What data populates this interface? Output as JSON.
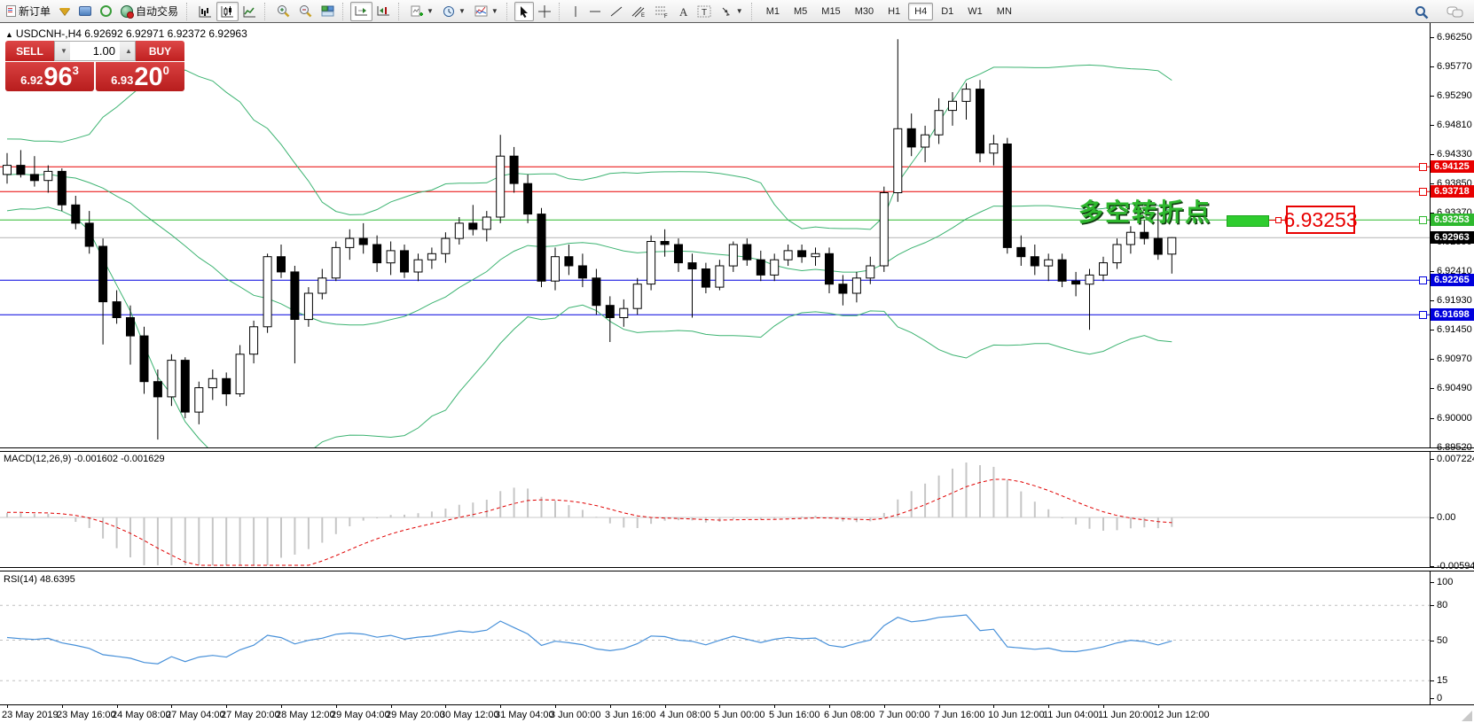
{
  "toolbar": {
    "new_order": "新订单",
    "auto_trading": "自动交易",
    "timeframes": [
      "M1",
      "M5",
      "M15",
      "M30",
      "H1",
      "H4",
      "D1",
      "W1",
      "MN"
    ],
    "active_timeframe": "H4"
  },
  "symbol_bar": {
    "marker": "▲",
    "info": "USDCNH-,H4  6.92692 6.92971 6.92372 6.92963"
  },
  "trade_panel": {
    "sell_label": "SELL",
    "buy_label": "BUY",
    "volume": "1.00",
    "sell_price_small": "6.92",
    "sell_price_big": "96",
    "sell_price_sup": "3",
    "buy_price_small": "6.93",
    "buy_price_big": "20",
    "buy_price_sup": "0"
  },
  "annotation": {
    "text": "多空转折点",
    "callout": "6.93253"
  },
  "macd_panel": {
    "label": "MACD(12,26,9)",
    "values": "-0.001602 -0.001629",
    "axis_top": "0.007224",
    "axis_zero": "0.00",
    "axis_bottom": "-0.005942"
  },
  "rsi_panel": {
    "label": "RSI(14)",
    "value": "48.6395",
    "axis": [
      "100",
      "80",
      "50",
      "15",
      "0"
    ]
  },
  "chart_data": {
    "type": "candlestick",
    "symbol": "USDCNH-",
    "period": "H4",
    "ylim": [
      6.8952,
      6.9647
    ],
    "price_ticks": [
      "6.96250",
      "6.95770",
      "6.95290",
      "6.94810",
      "6.94330",
      "6.93850",
      "6.93370",
      "6.92890",
      "6.92410",
      "6.91930",
      "6.91450",
      "6.90970",
      "6.90490",
      "6.90000",
      "6.89520"
    ],
    "time_labels": [
      "23 May 2019",
      "23 May 16:00",
      "24 May 08:00",
      "27 May 04:00",
      "27 May 20:00",
      "28 May 12:00",
      "29 May 04:00",
      "29 May 20:00",
      "30 May 12:00",
      "31 May 04:00",
      "3 Jun 00:00",
      "3 Jun 16:00",
      "4 Jun 08:00",
      "5 Jun 00:00",
      "5 Jun 16:00",
      "6 Jun 08:00",
      "7 Jun 00:00",
      "7 Jun 16:00",
      "10 Jun 12:00",
      "11 Jun 04:00",
      "11 Jun 20:00",
      "12 Jun 12:00"
    ],
    "ohlc": [
      [
        6.94,
        6.9435,
        6.9385,
        6.9415
      ],
      [
        6.9415,
        6.944,
        6.9395,
        6.94
      ],
      [
        6.94,
        6.943,
        6.938,
        6.939
      ],
      [
        6.939,
        6.9415,
        6.937,
        6.9405
      ],
      [
        6.9405,
        6.941,
        6.934,
        6.935
      ],
      [
        6.935,
        6.9365,
        6.931,
        6.932
      ],
      [
        6.932,
        6.934,
        6.927,
        6.9282
      ],
      [
        6.9282,
        6.9295,
        6.9121,
        6.9191
      ],
      [
        6.9191,
        6.921,
        6.9155,
        6.9165
      ],
      [
        6.9165,
        6.9185,
        6.9088,
        6.9135
      ],
      [
        6.9135,
        6.915,
        6.904,
        6.906
      ],
      [
        6.906,
        6.908,
        6.8965,
        6.9035
      ],
      [
        6.9035,
        6.9105,
        6.902,
        6.9095
      ],
      [
        6.9095,
        6.91,
        6.9,
        6.901
      ],
      [
        6.901,
        6.906,
        6.899,
        6.905
      ],
      [
        6.905,
        6.908,
        6.903,
        6.9065
      ],
      [
        6.9065,
        6.9075,
        6.902,
        6.904
      ],
      [
        6.904,
        6.912,
        6.9035,
        6.9105
      ],
      [
        6.9105,
        6.916,
        6.909,
        6.915
      ],
      [
        6.915,
        6.927,
        6.914,
        6.9265
      ],
      [
        6.9265,
        6.9285,
        6.923,
        6.924
      ],
      [
        6.924,
        6.925,
        6.909,
        6.9162
      ],
      [
        6.9162,
        6.9215,
        6.915,
        6.9205
      ],
      [
        6.9205,
        6.9245,
        6.9195,
        6.923
      ],
      [
        6.923,
        6.929,
        6.9225,
        6.928
      ],
      [
        6.928,
        6.931,
        6.926,
        6.9295
      ],
      [
        6.9295,
        6.932,
        6.927,
        6.9285
      ],
      [
        6.9285,
        6.93,
        6.924,
        6.9255
      ],
      [
        6.9255,
        6.929,
        6.9235,
        6.9275
      ],
      [
        6.9275,
        6.9285,
        6.923,
        6.924
      ],
      [
        6.924,
        6.927,
        6.9225,
        6.926
      ],
      [
        6.926,
        6.928,
        6.9245,
        6.927
      ],
      [
        6.927,
        6.9305,
        6.9255,
        6.9295
      ],
      [
        6.9295,
        6.933,
        6.9285,
        6.932
      ],
      [
        6.932,
        6.935,
        6.93,
        6.931
      ],
      [
        6.931,
        6.934,
        6.929,
        6.933
      ],
      [
        6.933,
        6.9465,
        6.932,
        6.943
      ],
      [
        6.943,
        6.9445,
        6.937,
        6.9385
      ],
      [
        6.9385,
        6.94,
        6.932,
        6.9335
      ],
      [
        6.9335,
        6.9345,
        6.9215,
        6.9225
      ],
      [
        6.9225,
        6.928,
        6.921,
        6.9265
      ],
      [
        6.9265,
        6.9285,
        6.9235,
        6.925
      ],
      [
        6.925,
        6.927,
        6.9215,
        6.923
      ],
      [
        6.923,
        6.9245,
        6.917,
        6.9185
      ],
      [
        6.9185,
        6.92,
        6.9125,
        6.9165
      ],
      [
        6.9165,
        6.9195,
        6.915,
        6.918
      ],
      [
        6.918,
        6.923,
        6.917,
        6.922
      ],
      [
        6.922,
        6.93,
        6.921,
        6.929
      ],
      [
        6.929,
        6.931,
        6.9265,
        6.9285
      ],
      [
        6.9285,
        6.9295,
        6.924,
        6.9255
      ],
      [
        6.9255,
        6.927,
        6.9165,
        6.9245
      ],
      [
        6.9245,
        6.9255,
        6.9205,
        6.9215
      ],
      [
        6.9215,
        6.926,
        6.921,
        6.925
      ],
      [
        6.925,
        6.929,
        6.924,
        6.9285
      ],
      [
        6.9285,
        6.9295,
        6.925,
        6.926
      ],
      [
        6.926,
        6.9275,
        6.9225,
        6.9235
      ],
      [
        6.9235,
        6.927,
        6.9225,
        6.926
      ],
      [
        6.926,
        6.9285,
        6.925,
        6.9275
      ],
      [
        6.9275,
        6.9285,
        6.9255,
        6.9265
      ],
      [
        6.9265,
        6.928,
        6.925,
        6.927
      ],
      [
        6.927,
        6.928,
        6.9205,
        6.922
      ],
      [
        6.922,
        6.9235,
        6.9185,
        6.9205
      ],
      [
        6.9205,
        6.924,
        6.919,
        6.923
      ],
      [
        6.923,
        6.9265,
        6.922,
        6.925
      ],
      [
        6.925,
        6.938,
        6.924,
        6.937
      ],
      [
        6.937,
        6.9622,
        6.9355,
        6.9475
      ],
      [
        6.9475,
        6.95,
        6.943,
        6.9445
      ],
      [
        6.9445,
        6.948,
        6.942,
        6.9465
      ],
      [
        6.9465,
        6.9525,
        6.945,
        6.9505
      ],
      [
        6.9505,
        6.9535,
        6.948,
        6.952
      ],
      [
        6.952,
        6.955,
        6.949,
        6.954
      ],
      [
        6.954,
        6.9555,
        6.942,
        6.9435
      ],
      [
        6.9435,
        6.9465,
        6.9415,
        6.945
      ],
      [
        6.945,
        6.946,
        6.927,
        6.928
      ],
      [
        6.928,
        6.93,
        6.925,
        6.9265
      ],
      [
        6.9265,
        6.9285,
        6.9235,
        6.925
      ],
      [
        6.925,
        6.927,
        6.9225,
        6.926
      ],
      [
        6.926,
        6.927,
        6.9215,
        6.9225
      ],
      [
        6.9225,
        6.924,
        6.92,
        6.922
      ],
      [
        6.922,
        6.9245,
        6.9145,
        6.9235
      ],
      [
        6.9235,
        6.9265,
        6.9225,
        6.9255
      ],
      [
        6.9255,
        6.9295,
        6.9245,
        6.9285
      ],
      [
        6.9285,
        6.9315,
        6.927,
        6.9305
      ],
      [
        6.9305,
        6.9325,
        6.9285,
        6.9295
      ],
      [
        6.9295,
        6.9345,
        6.926,
        6.9269
      ],
      [
        6.92692,
        6.92971,
        6.92372,
        6.92963
      ]
    ],
    "hlines": [
      {
        "price": 6.94125,
        "color": "#e80000"
      },
      {
        "price": 6.93718,
        "color": "#e80000"
      },
      {
        "price": 6.93253,
        "color": "#2eb82e"
      },
      {
        "price": 6.92265,
        "color": "#0000dd"
      },
      {
        "price": 6.91698,
        "color": "#0000dd"
      }
    ],
    "current_price": {
      "price": 6.92963,
      "line_color": "#b4b4b4",
      "tag_bg": "#000000"
    },
    "indicators": {
      "bollinger": {
        "period": 20,
        "deviation": 2,
        "color": "#3cb371"
      },
      "macd": {
        "fast": 12,
        "slow": 26,
        "signal": 9,
        "range": [
          -0.005942,
          0.007224
        ],
        "bar_color": "#c6c6c6",
        "signal_color": "#e00000"
      },
      "rsi": {
        "period": 14,
        "levels": [
          80,
          50,
          15
        ],
        "range": [
          0,
          100
        ],
        "color": "#4790d9"
      }
    }
  }
}
